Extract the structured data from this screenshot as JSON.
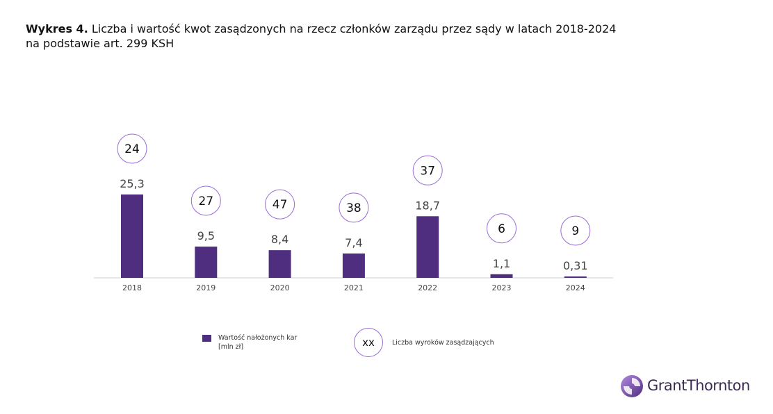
{
  "title": {
    "lead": "Wykres 4.",
    "line1": "Liczba i wartość kwot zasądzonych na rzecz członków zarządu przez sądy w latach 2018-2024",
    "line2": "na podstawie art. 299 KSH"
  },
  "chart_data": {
    "type": "bar",
    "categories": [
      "2018",
      "2019",
      "2020",
      "2021",
      "2022",
      "2023",
      "2024"
    ],
    "series": [
      {
        "name": "Wartość nałożonych kar [mln zł]",
        "values": [
          25.3,
          9.5,
          8.4,
          7.4,
          18.7,
          1.1,
          0.31
        ],
        "value_labels": [
          "25,3",
          "9,5",
          "8,4",
          "7,4",
          "18,7",
          "1,1",
          "0,31"
        ]
      },
      {
        "name": "Liczba wyroków zasądzających",
        "values": [
          24,
          27,
          47,
          38,
          37,
          6,
          9
        ],
        "value_labels": [
          "24",
          "27",
          "47",
          "38",
          "37",
          "6",
          "9"
        ]
      }
    ],
    "ylim": [
      0,
      25.3
    ],
    "grid": false,
    "legend_placement": "bottom"
  },
  "legend": {
    "bar_label": "Wartość nałożonych kar [mln zł]",
    "circle_sample": "xx",
    "circle_label": "Liczba wyroków zasądzających"
  },
  "colors": {
    "bar": "#4f2d7f",
    "circle_border": "#9a6bd6",
    "axis": "#cccccc"
  },
  "logo": {
    "text": "GrantThornton"
  }
}
